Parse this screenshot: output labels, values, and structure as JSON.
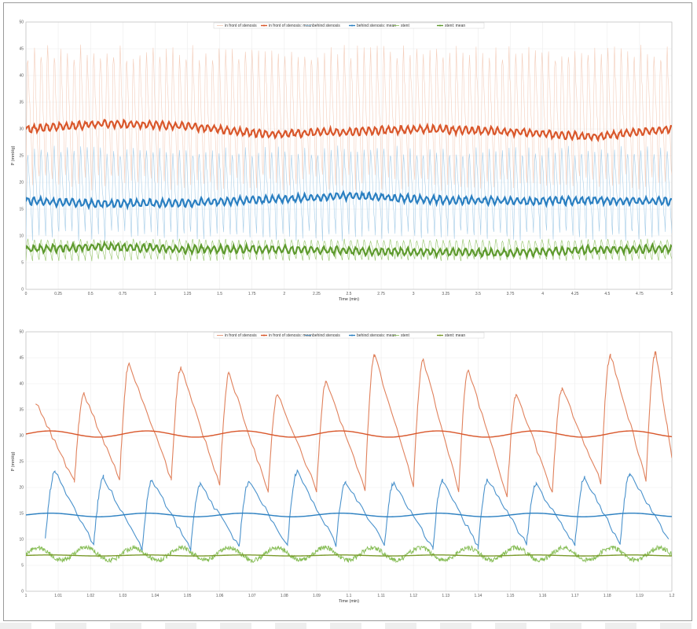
{
  "chart_data": [
    {
      "type": "line",
      "title": "",
      "xlabel": "Time (min)",
      "ylabel": "P (mmHg)",
      "xlim": [
        0,
        5
      ],
      "ylim": [
        0,
        50
      ],
      "x_ticks": [
        "0",
        "0.25",
        "0.5",
        "0.75",
        "1",
        "1.25",
        "1.5",
        "1.75",
        "2",
        "2.25",
        "2.5",
        "2.75",
        "3",
        "3.25",
        "3.5",
        "3.75",
        "4",
        "4.25",
        "4.5",
        "4.75",
        "5"
      ],
      "y_ticks": [
        "0",
        "5",
        "10",
        "15",
        "20",
        "25",
        "30",
        "35",
        "40",
        "45",
        "50"
      ],
      "legend": {
        "placement": "top-center",
        "entries": [
          "in front of stenosis",
          "in front of stenosis: mean",
          "behind stenosis",
          "behind stenosis: mean",
          "stent",
          "stent: mean"
        ]
      },
      "pulse_count": 98,
      "series": [
        {
          "name": "in front of stenosis",
          "color": "#f3c8b3",
          "mean": 30,
          "min": 20,
          "max": 46
        },
        {
          "name": "in front of stenosis: mean",
          "color": "#d9572b",
          "mean": 30,
          "drift": [
            30,
            31,
            30.5,
            29,
            29.5,
            30,
            29.5,
            28.5,
            30
          ]
        },
        {
          "name": "behind stenosis",
          "color": "#9cc8e6",
          "mean": 16.5,
          "min": 10,
          "max": 27
        },
        {
          "name": "behind stenosis: mean",
          "color": "#2a7fc1",
          "mean": 16.5,
          "drift": [
            16.5,
            16,
            16.2,
            16.8,
            17.5,
            16.8,
            16.5,
            16.6,
            16.5
          ]
        },
        {
          "name": "stent",
          "color": "#86bd55",
          "mean": 7.5,
          "min": 5.5,
          "max": 9.5
        },
        {
          "name": "stent: mean",
          "color": "#5e9a2e",
          "mean": 7.5,
          "drift": [
            7.5,
            8,
            7.5,
            7.5,
            7.2,
            7,
            6.8,
            7.4,
            7.6
          ]
        }
      ]
    },
    {
      "type": "line",
      "title": "",
      "xlabel": "Time (min)",
      "ylabel": "P (mmHg)",
      "xlim": [
        1,
        1.2
      ],
      "ylim": [
        0,
        50
      ],
      "x_ticks": [
        "1",
        "1.01",
        "1.02",
        "1.03",
        "1.04",
        "1.05",
        "1.06",
        "1.07",
        "1.08",
        "1.09",
        "1.1",
        "1.11",
        "1.12",
        "1.13",
        "1.14",
        "1.15",
        "1.16",
        "1.17",
        "1.18",
        "1.19",
        "1.2"
      ],
      "y_ticks": [
        "0",
        "5",
        "10",
        "15",
        "20",
        "25",
        "30",
        "35",
        "40",
        "45",
        "50"
      ],
      "legend": {
        "placement": "top-center",
        "entries": [
          "in front of stenosis",
          "in front of stenosis: mean",
          "behind stenosis",
          "behind stenosis: mean",
          "stent",
          "stent: mean"
        ]
      },
      "series": [
        {
          "name": "in front of stenosis",
          "color": "#e0815c",
          "peaks": [
            [
              1.003,
              36.5
            ],
            [
              1.018,
              38
            ],
            [
              1.032,
              44
            ],
            [
              1.048,
              43
            ],
            [
              1.063,
              42
            ],
            [
              1.078,
              38
            ],
            [
              1.093,
              40.5
            ],
            [
              1.108,
              45.5
            ],
            [
              1.123,
              44.5
            ],
            [
              1.137,
              42.5
            ],
            [
              1.152,
              38
            ],
            [
              1.166,
              39
            ],
            [
              1.181,
              45.5
            ],
            [
              1.195,
              46
            ]
          ],
          "troughs": [
            [
              1.015,
              21
            ],
            [
              1.029,
              21.5
            ],
            [
              1.045,
              21.5
            ],
            [
              1.06,
              20.5
            ],
            [
              1.075,
              19
            ],
            [
              1.09,
              19.5
            ],
            [
              1.105,
              19.5
            ],
            [
              1.12,
              20.5
            ],
            [
              1.134,
              19.5
            ],
            [
              1.149,
              18.5
            ],
            [
              1.163,
              19
            ],
            [
              1.178,
              21
            ],
            [
              1.192,
              21.5
            ],
            [
              1.2,
              26
            ]
          ]
        },
        {
          "name": "in front of stenosis: mean",
          "color": "#d9572b",
          "mean": 30.3,
          "amplitude": 0.6
        },
        {
          "name": "behind stenosis",
          "color": "#4a92cc",
          "peaks": [
            [
              1.009,
              23
            ],
            [
              1.024,
              22
            ],
            [
              1.039,
              21.5
            ],
            [
              1.054,
              20.5
            ],
            [
              1.069,
              21
            ],
            [
              1.084,
              23
            ],
            [
              1.099,
              21
            ],
            [
              1.114,
              21
            ],
            [
              1.129,
              21.5
            ],
            [
              1.143,
              21.5
            ],
            [
              1.158,
              20.5
            ],
            [
              1.173,
              22
            ],
            [
              1.187,
              22.5
            ]
          ],
          "troughs": [
            [
              1.006,
              10
            ],
            [
              1.021,
              9
            ],
            [
              1.036,
              8
            ],
            [
              1.051,
              8
            ],
            [
              1.066,
              8.5
            ],
            [
              1.081,
              9
            ],
            [
              1.096,
              9
            ],
            [
              1.111,
              9
            ],
            [
              1.126,
              8
            ],
            [
              1.14,
              8.5
            ],
            [
              1.155,
              9
            ],
            [
              1.17,
              9
            ],
            [
              1.184,
              9
            ],
            [
              1.199,
              10
            ]
          ]
        },
        {
          "name": "behind stenosis: mean",
          "color": "#2a7fc1",
          "mean": 14.7,
          "amplitude": 0.35
        },
        {
          "name": "stent",
          "color": "#86bd55",
          "mean": 7.2,
          "amplitude": 1.2
        },
        {
          "name": "stent: mean",
          "color": "#7a9a2a",
          "mean": 6.9,
          "amplitude": 0.1
        }
      ]
    }
  ]
}
